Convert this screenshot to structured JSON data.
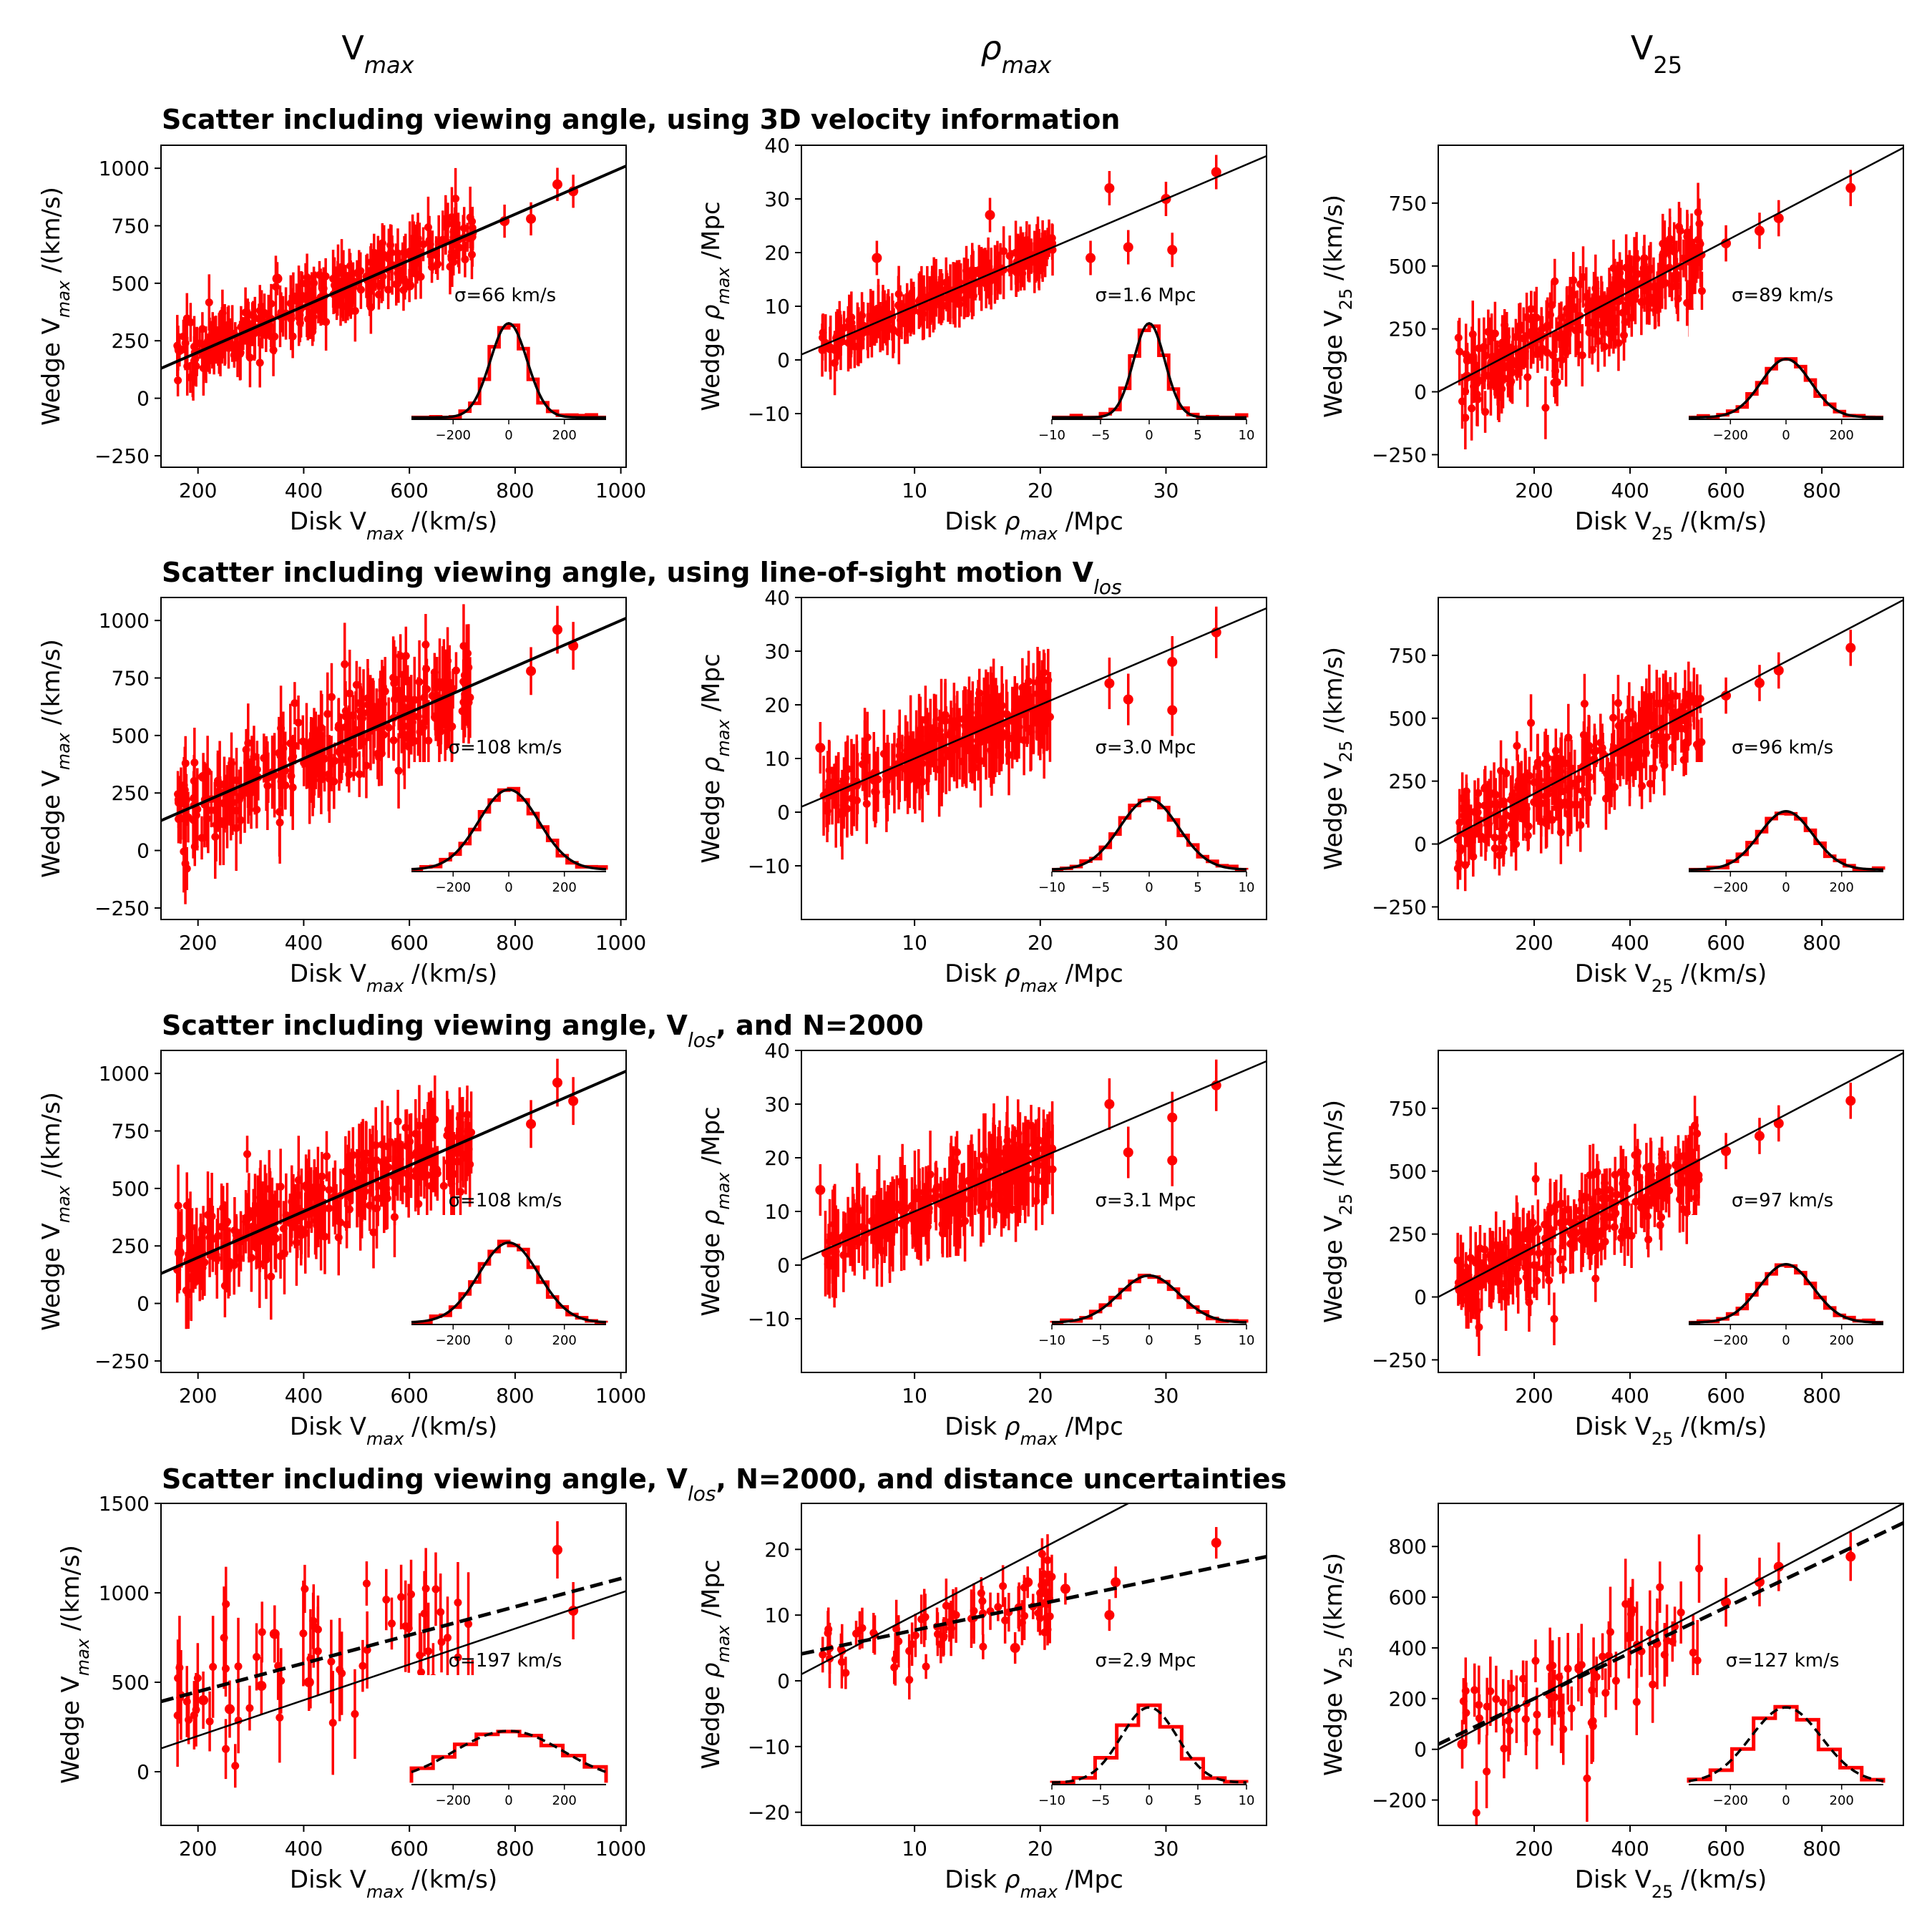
{
  "figure": {
    "column_titles": [
      {
        "base": "V",
        "sub": "max",
        "sub_italic": true
      },
      {
        "base": "ρ",
        "sub": "max",
        "italic_base": true,
        "sub_italic": true
      },
      {
        "base": "V",
        "sub": "25",
        "sub_italic": false
      }
    ],
    "row_titles": [
      {
        "text": "Scatter including viewing angle, using 3D velocity information",
        "after": ""
      },
      {
        "text": "Scatter including viewing angle, using line-of-sight motion V",
        "sub": "los",
        "after": ""
      },
      {
        "text": "Scatter including viewing angle, V",
        "sub": "los",
        "after": ", and N=2000"
      },
      {
        "text": "Scatter including viewing angle, V",
        "sub": "los",
        "after": ", N=2000, and distance uncertainties"
      }
    ],
    "colors": {
      "points": "#ff0000",
      "lines": "#000000"
    }
  },
  "chart_data": [
    {
      "type": "scatter",
      "row": 0,
      "col": 0,
      "xlabel": {
        "pre": "Disk V",
        "sub": "max",
        "post": " /(km/s)"
      },
      "ylabel": {
        "pre": "Wedge V",
        "sub": "max",
        "post": " /(km/s)"
      },
      "xlim": [
        130,
        1010
      ],
      "ylim": [
        -300,
        1100
      ],
      "xticks": [
        200,
        400,
        600,
        800,
        1000
      ],
      "yticks": [
        -250,
        0,
        250,
        500,
        750,
        1000
      ],
      "one_to_one_line": true,
      "fit_line": {
        "slope": 1.0,
        "intercept": 0,
        "style": "solid"
      },
      "scatter_sigma": 66,
      "points_count": 260,
      "yerr": 90,
      "outliers": [
        {
          "x": 880,
          "y": 930
        },
        {
          "x": 910,
          "y": 900
        },
        {
          "x": 780,
          "y": 770
        },
        {
          "x": 350,
          "y": 520
        },
        {
          "x": 600,
          "y": 490
        },
        {
          "x": 165,
          "y": 210
        },
        {
          "x": 250,
          "y": 300
        },
        {
          "x": 830,
          "y": 780
        }
      ],
      "sigma_label": "σ=66 km/s",
      "inset": {
        "xlim": [
          -350,
          350
        ],
        "xticks": [
          -200,
          0,
          200
        ],
        "sigma": 66,
        "peak": 1.0,
        "fit_style": "solid",
        "hist_bins": 20
      }
    },
    {
      "type": "scatter",
      "row": 0,
      "col": 1,
      "xlabel": {
        "pre": "Disk ",
        "greek": "ρ",
        "sub": "max",
        "post": " /Mpc"
      },
      "ylabel": {
        "pre": "Wedge ",
        "greek": "ρ",
        "sub": "max",
        "post": " /Mpc"
      },
      "xlim": [
        1,
        38
      ],
      "ylim": [
        -20,
        40
      ],
      "xticks": [
        10,
        20,
        30
      ],
      "yticks": [
        -10,
        0,
        10,
        20,
        30,
        40
      ],
      "one_to_one_line": true,
      "fit_line": {
        "slope": 1.0,
        "intercept": 0,
        "style": "solid"
      },
      "scatter_sigma": 1.6,
      "points_count": 200,
      "yerr": 4,
      "outliers": [
        {
          "x": 7,
          "y": 19
        },
        {
          "x": 16,
          "y": 27
        },
        {
          "x": 25.5,
          "y": 32
        },
        {
          "x": 34,
          "y": 35
        },
        {
          "x": 30,
          "y": 30
        },
        {
          "x": 30.5,
          "y": 20.5
        },
        {
          "x": 27,
          "y": 21
        },
        {
          "x": 24,
          "y": 19
        }
      ],
      "sigma_label": "σ=1.6 Mpc",
      "inset": {
        "xlim": [
          -10,
          10
        ],
        "xticks": [
          -10,
          -5,
          0,
          5,
          10
        ],
        "sigma": 1.6,
        "peak": 1.0,
        "fit_style": "solid",
        "hist_bins": 20
      }
    },
    {
      "type": "scatter",
      "row": 0,
      "col": 2,
      "xlabel": {
        "pre": "Disk V",
        "sub": "25",
        "post": " /(km/s)",
        "sub_upright": true
      },
      "ylabel": {
        "pre": "Wedge V",
        "sub": "25",
        "post": " /(km/s)",
        "sub_upright": true
      },
      "xlim": [
        0,
        970
      ],
      "ylim": [
        -300,
        980
      ],
      "xticks": [
        200,
        400,
        600,
        800
      ],
      "yticks": [
        -250,
        0,
        250,
        500,
        750
      ],
      "one_to_one_line": true,
      "fit_line": {
        "slope": 1.0,
        "intercept": 0,
        "style": "solid"
      },
      "scatter_sigma": 89,
      "points_count": 260,
      "yerr": 90,
      "outliers": [
        {
          "x": 60,
          "y": 60
        },
        {
          "x": 600,
          "y": 590
        },
        {
          "x": 670,
          "y": 640
        },
        {
          "x": 710,
          "y": 690
        },
        {
          "x": 860,
          "y": 810
        }
      ],
      "sigma_label": "σ=89 km/s",
      "inset": {
        "xlim": [
          -350,
          350
        ],
        "xticks": [
          -200,
          0,
          200
        ],
        "sigma": 89,
        "peak": 0.62,
        "fit_style": "solid",
        "hist_bins": 20
      }
    },
    {
      "type": "scatter",
      "row": 1,
      "col": 0,
      "xlabel": {
        "pre": "Disk V",
        "sub": "max",
        "post": " /(km/s)"
      },
      "ylabel": {
        "pre": "Wedge V",
        "sub": "max",
        "post": " /(km/s)"
      },
      "xlim": [
        130,
        1010
      ],
      "ylim": [
        -300,
        1100
      ],
      "xticks": [
        200,
        400,
        600,
        800,
        1000
      ],
      "yticks": [
        -250,
        0,
        250,
        500,
        750,
        1000
      ],
      "one_to_one_line": true,
      "fit_line": {
        "slope": 1.0,
        "intercept": 0,
        "style": "solid"
      },
      "scatter_sigma": 108,
      "points_count": 260,
      "yerr": 130,
      "outliers": [
        {
          "x": 880,
          "y": 960
        },
        {
          "x": 910,
          "y": 890
        },
        {
          "x": 830,
          "y": 780
        },
        {
          "x": 650,
          "y": 580
        },
        {
          "x": 165,
          "y": 220
        },
        {
          "x": 210,
          "y": 320
        }
      ],
      "sigma_label": "σ=108 km/s",
      "inset": {
        "xlim": [
          -350,
          350
        ],
        "xticks": [
          -200,
          0,
          200
        ],
        "sigma": 108,
        "peak": 0.85,
        "fit_style": "solid",
        "hist_bins": 20
      }
    },
    {
      "type": "scatter",
      "row": 1,
      "col": 1,
      "xlabel": {
        "pre": "Disk ",
        "greek": "ρ",
        "sub": "max",
        "post": " /Mpc"
      },
      "ylabel": {
        "pre": "Wedge ",
        "greek": "ρ",
        "sub": "max",
        "post": " /Mpc"
      },
      "xlim": [
        1,
        38
      ],
      "ylim": [
        -20,
        40
      ],
      "xticks": [
        10,
        20,
        30
      ],
      "yticks": [
        -10,
        0,
        10,
        20,
        30,
        40
      ],
      "one_to_one_line": true,
      "fit_line": {
        "slope": 1.0,
        "intercept": 0,
        "style": "solid"
      },
      "scatter_sigma": 3.0,
      "points_count": 220,
      "yerr": 6,
      "outliers": [
        {
          "x": 2.5,
          "y": 12
        },
        {
          "x": 34,
          "y": 33.5
        },
        {
          "x": 30.5,
          "y": 28
        },
        {
          "x": 30.5,
          "y": 19
        },
        {
          "x": 27,
          "y": 21
        },
        {
          "x": 25.5,
          "y": 24
        }
      ],
      "sigma_label": "σ=3.0 Mpc",
      "inset": {
        "xlim": [
          -10,
          10
        ],
        "xticks": [
          -10,
          -5,
          0,
          5,
          10
        ],
        "sigma": 3.0,
        "peak": 0.75,
        "fit_style": "solid",
        "hist_bins": 20
      }
    },
    {
      "type": "scatter",
      "row": 1,
      "col": 2,
      "xlabel": {
        "pre": "Disk V",
        "sub": "25",
        "post": " /(km/s)",
        "sub_upright": true
      },
      "ylabel": {
        "pre": "Wedge V",
        "sub": "25",
        "post": " /(km/s)",
        "sub_upright": true
      },
      "xlim": [
        0,
        970
      ],
      "ylim": [
        -300,
        980
      ],
      "xticks": [
        200,
        400,
        600,
        800
      ],
      "yticks": [
        -250,
        0,
        250,
        500,
        750
      ],
      "one_to_one_line": true,
      "fit_line": {
        "slope": 1.0,
        "intercept": 0,
        "style": "solid"
      },
      "scatter_sigma": 96,
      "points_count": 260,
      "yerr": 90,
      "outliers": [
        {
          "x": 60,
          "y": 60
        },
        {
          "x": 600,
          "y": 590
        },
        {
          "x": 670,
          "y": 640
        },
        {
          "x": 710,
          "y": 690
        },
        {
          "x": 860,
          "y": 780
        }
      ],
      "sigma_label": "σ=96 km/s",
      "inset": {
        "xlim": [
          -350,
          350
        ],
        "xticks": [
          -200,
          0,
          200
        ],
        "sigma": 96,
        "peak": 0.62,
        "fit_style": "solid",
        "hist_bins": 20
      }
    },
    {
      "type": "scatter",
      "row": 2,
      "col": 0,
      "xlabel": {
        "pre": "Disk V",
        "sub": "max",
        "post": " /(km/s)"
      },
      "ylabel": {
        "pre": "Wedge V",
        "sub": "max",
        "post": " /(km/s)"
      },
      "xlim": [
        130,
        1010
      ],
      "ylim": [
        -300,
        1100
      ],
      "xticks": [
        200,
        400,
        600,
        800,
        1000
      ],
      "yticks": [
        -250,
        0,
        250,
        500,
        750,
        1000
      ],
      "one_to_one_line": true,
      "fit_line": {
        "slope": 1.0,
        "intercept": 0,
        "style": "solid"
      },
      "scatter_sigma": 108,
      "points_count": 260,
      "yerr": 130,
      "outliers": [
        {
          "x": 880,
          "y": 960
        },
        {
          "x": 910,
          "y": 880
        },
        {
          "x": 830,
          "y": 780
        },
        {
          "x": 650,
          "y": 580
        },
        {
          "x": 165,
          "y": 220
        },
        {
          "x": 210,
          "y": 320
        }
      ],
      "sigma_label": "σ=108 km/s",
      "inset": {
        "xlim": [
          -350,
          350
        ],
        "xticks": [
          -200,
          0,
          200
        ],
        "sigma": 108,
        "peak": 0.85,
        "fit_style": "solid",
        "hist_bins": 20
      }
    },
    {
      "type": "scatter",
      "row": 2,
      "col": 1,
      "xlabel": {
        "pre": "Disk ",
        "greek": "ρ",
        "sub": "max",
        "post": " /Mpc"
      },
      "ylabel": {
        "pre": "Wedge ",
        "greek": "ρ",
        "sub": "max",
        "post": " /Mpc"
      },
      "xlim": [
        1,
        38
      ],
      "ylim": [
        -20,
        40
      ],
      "xticks": [
        10,
        20,
        30
      ],
      "yticks": [
        -10,
        0,
        10,
        20,
        30,
        40
      ],
      "one_to_one_line": true,
      "fit_line": {
        "slope": 1.0,
        "intercept": 0,
        "style": "solid"
      },
      "scatter_sigma": 3.1,
      "points_count": 220,
      "yerr": 6,
      "outliers": [
        {
          "x": 2.5,
          "y": 14
        },
        {
          "x": 34,
          "y": 33.5
        },
        {
          "x": 30.5,
          "y": 27.5
        },
        {
          "x": 30.5,
          "y": 19.5
        },
        {
          "x": 25.5,
          "y": 30
        },
        {
          "x": 27,
          "y": 21
        }
      ],
      "sigma_label": "σ=3.1 Mpc",
      "inset": {
        "xlim": [
          -10,
          10
        ],
        "xticks": [
          -10,
          -5,
          0,
          5,
          10
        ],
        "sigma": 3.1,
        "peak": 0.5,
        "fit_style": "solid",
        "hist_bins": 20
      }
    },
    {
      "type": "scatter",
      "row": 2,
      "col": 2,
      "xlabel": {
        "pre": "Disk V",
        "sub": "25",
        "post": " /(km/s)",
        "sub_upright": true
      },
      "ylabel": {
        "pre": "Wedge V",
        "sub": "25",
        "post": " /(km/s)",
        "sub_upright": true
      },
      "xlim": [
        0,
        970
      ],
      "ylim": [
        -300,
        980
      ],
      "xticks": [
        200,
        400,
        600,
        800
      ],
      "yticks": [
        -250,
        0,
        250,
        500,
        750
      ],
      "one_to_one_line": true,
      "fit_line": {
        "slope": 1.0,
        "intercept": 0,
        "style": "solid"
      },
      "scatter_sigma": 97,
      "points_count": 260,
      "yerr": 90,
      "outliers": [
        {
          "x": 60,
          "y": 60
        },
        {
          "x": 600,
          "y": 580
        },
        {
          "x": 670,
          "y": 640
        },
        {
          "x": 710,
          "y": 690
        },
        {
          "x": 860,
          "y": 780
        }
      ],
      "sigma_label": "σ=97 km/s",
      "inset": {
        "xlim": [
          -350,
          350
        ],
        "xticks": [
          -200,
          0,
          200
        ],
        "sigma": 97,
        "peak": 0.62,
        "fit_style": "solid",
        "hist_bins": 20
      }
    },
    {
      "type": "scatter",
      "row": 3,
      "col": 0,
      "xlabel": {
        "pre": "Disk V",
        "sub": "max",
        "post": " /(km/s)"
      },
      "ylabel": {
        "pre": "Wedge V",
        "sub": "max",
        "post": " /(km/s)"
      },
      "xlim": [
        130,
        1010
      ],
      "ylim": [
        -300,
        1500
      ],
      "xticks": [
        200,
        400,
        600,
        800,
        1000
      ],
      "yticks": [
        0,
        500,
        1000,
        1500
      ],
      "one_to_one_line": true,
      "fit_line": {
        "slope": 0.79,
        "intercept": 290,
        "style": "dashed"
      },
      "scatter_sigma": 197,
      "points_count": 60,
      "yerr": 200,
      "outliers": [
        {
          "x": 210,
          "y": 400
        },
        {
          "x": 260,
          "y": 350
        },
        {
          "x": 320,
          "y": 480
        },
        {
          "x": 345,
          "y": 770
        },
        {
          "x": 880,
          "y": 1240
        },
        {
          "x": 910,
          "y": 900
        },
        {
          "x": 410,
          "y": 500
        }
      ],
      "sigma_label": "σ=197 km/s",
      "inset": {
        "xlim": [
          -350,
          350
        ],
        "xticks": [
          -200,
          0,
          200
        ],
        "sigma": 197,
        "peak": 0.55,
        "fit_style": "dashed",
        "hist_bins": 9
      }
    },
    {
      "type": "scatter",
      "row": 3,
      "col": 1,
      "xlabel": {
        "pre": "Disk ",
        "greek": "ρ",
        "sub": "max",
        "post": " /Mpc"
      },
      "ylabel": {
        "pre": "Wedge ",
        "greek": "ρ",
        "sub": "max",
        "post": " /Mpc"
      },
      "xlim": [
        1,
        38
      ],
      "ylim": [
        -22,
        27
      ],
      "xticks": [
        10,
        20,
        30
      ],
      "yticks": [
        -20,
        -10,
        0,
        10,
        20
      ],
      "one_to_one_line": true,
      "fit_line": {
        "slope": 0.4,
        "intercept": 3.7,
        "style": "dashed"
      },
      "scatter_sigma": 2.9,
      "points_count": 70,
      "yerr": 3,
      "outliers": [
        {
          "x": 34,
          "y": 21
        },
        {
          "x": 19,
          "y": 15
        },
        {
          "x": 26,
          "y": 15
        },
        {
          "x": 25.5,
          "y": 10
        },
        {
          "x": 22,
          "y": 14
        },
        {
          "x": 18,
          "y": 5
        }
      ],
      "sigma_label": "σ=2.9 Mpc",
      "inset": {
        "xlim": [
          -10,
          10
        ],
        "xticks": [
          -10,
          -5,
          0,
          5,
          10
        ],
        "sigma": 2.9,
        "peak": 0.8,
        "fit_style": "dashed",
        "hist_bins": 9
      }
    },
    {
      "type": "scatter",
      "row": 3,
      "col": 2,
      "xlabel": {
        "pre": "Disk V",
        "sub": "25",
        "post": " /(km/s)",
        "sub_upright": true
      },
      "ylabel": {
        "pre": "Wedge V",
        "sub": "25",
        "post": " /(km/s)",
        "sub_upright": true
      },
      "xlim": [
        0,
        970
      ],
      "ylim": [
        -300,
        970
      ],
      "xticks": [
        200,
        400,
        600,
        800
      ],
      "yticks": [
        -200,
        0,
        200,
        400,
        600,
        800
      ],
      "one_to_one_line": true,
      "fit_line": {
        "slope": 0.9,
        "intercept": 20,
        "style": "dashed"
      },
      "scatter_sigma": 127,
      "points_count": 70,
      "yerr": 120,
      "outliers": [
        {
          "x": 50,
          "y": 20
        },
        {
          "x": 860,
          "y": 760
        },
        {
          "x": 710,
          "y": 720
        },
        {
          "x": 670,
          "y": 660
        },
        {
          "x": 600,
          "y": 580
        }
      ],
      "sigma_label": "σ=127 km/s",
      "inset": {
        "xlim": [
          -350,
          350
        ],
        "xticks": [
          -200,
          0,
          200
        ],
        "sigma": 127,
        "peak": 0.8,
        "fit_style": "dashed",
        "hist_bins": 9
      }
    }
  ]
}
